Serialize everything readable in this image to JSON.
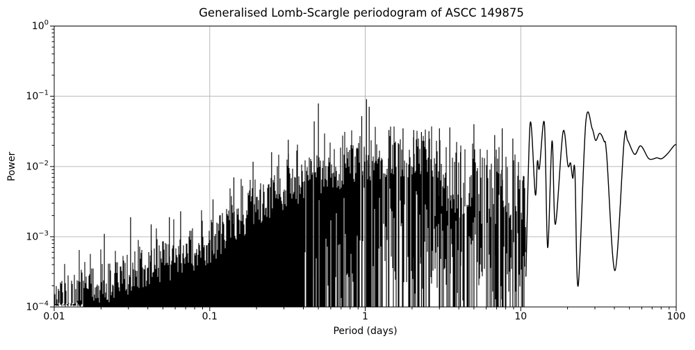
{
  "figure": {
    "title": "Generalised Lomb-Scargle periodogram of ASCC 149875",
    "background": "#ffffff"
  },
  "chart_data": {
    "type": "line",
    "title": "Generalised Lomb-Scargle periodogram of ASCC 149875",
    "xlabel": "Period (days)",
    "ylabel": "Power",
    "x_scale": "log",
    "y_scale": "log",
    "xlim": [
      0.01,
      100
    ],
    "ylim": [
      0.0001,
      1
    ],
    "x_ticks": [
      0.01,
      0.1,
      1,
      10,
      100
    ],
    "x_tick_labels": [
      "0.01",
      "0.1",
      "1",
      "10",
      "100"
    ],
    "y_tick_base": "10",
    "y_tick_exponents": [
      "0",
      "−1",
      "−2",
      "−3",
      "−4"
    ],
    "y_tick_exponent_values": [
      0,
      -1,
      -2,
      -3,
      -4
    ],
    "grid": true,
    "legend": false,
    "colors": {
      "line": "#000000",
      "grid": "#b0b0b0",
      "spine": "#000000",
      "text": "#000000",
      "background": "#ffffff"
    },
    "description": "Generalised Lomb-Scargle periodogram: dense noisy spike forest rising from ~2e-4 at P=0.01 d to ~2e-2 near P=1-2 d, strongest peaks ~0.08 at P=0.5 d and ~0.09 at P=1 d, then a smooth curve from P~11-100 d around 1e-2 to 4e-2 with deep notches near P=15, 24 and 40 d.",
    "noise_floor_min": 0.0001,
    "noise_envelope": [
      [
        0.01,
        0.00021
      ],
      [
        0.02,
        0.00033
      ],
      [
        0.04,
        0.00055
      ],
      [
        0.07,
        0.0009
      ],
      [
        0.1,
        0.0013
      ],
      [
        0.15,
        0.0026
      ],
      [
        0.2,
        0.0045
      ],
      [
        0.3,
        0.0075
      ],
      [
        0.5,
        0.012
      ],
      [
        0.8,
        0.016
      ],
      [
        1.2,
        0.02
      ],
      [
        2.0,
        0.022
      ],
      [
        3.5,
        0.018
      ],
      [
        6.0,
        0.017
      ],
      [
        10.8,
        0.012
      ]
    ],
    "major_peaks": [
      [
        0.021,
        0.0011
      ],
      [
        0.031,
        0.0019
      ],
      [
        0.042,
        0.0015
      ],
      [
        0.055,
        0.0019
      ],
      [
        0.065,
        0.0023
      ],
      [
        0.105,
        0.0034
      ],
      [
        0.143,
        0.007
      ],
      [
        0.19,
        0.0117
      ],
      [
        0.25,
        0.016
      ],
      [
        0.32,
        0.024
      ],
      [
        0.47,
        0.044
      ],
      [
        0.5,
        0.079
      ],
      [
        0.95,
        0.052
      ],
      [
        1.02,
        0.091
      ],
      [
        1.06,
        0.071
      ],
      [
        1.42,
        0.033
      ],
      [
        1.75,
        0.035
      ],
      [
        2.05,
        0.033
      ],
      [
        2.3,
        0.031
      ],
      [
        2.57,
        0.032
      ],
      [
        3.0,
        0.035
      ],
      [
        3.5,
        0.036
      ],
      [
        4.1,
        0.016
      ],
      [
        5.0,
        0.04
      ],
      [
        6.8,
        0.028
      ],
      [
        7.6,
        0.035
      ],
      [
        8.9,
        0.025
      ]
    ],
    "smooth_tail": [
      [
        10.8,
        0.00027
      ],
      [
        11.5,
        0.041
      ],
      [
        12.4,
        0.004
      ],
      [
        12.8,
        0.0119
      ],
      [
        13.2,
        0.0095
      ],
      [
        14.2,
        0.041
      ],
      [
        14.9,
        0.0007
      ],
      [
        15.9,
        0.0231
      ],
      [
        16.7,
        0.0015
      ],
      [
        18.7,
        0.031
      ],
      [
        20.1,
        0.0104
      ],
      [
        20.9,
        0.0112
      ],
      [
        21.6,
        0.0068
      ],
      [
        22.3,
        0.0085
      ],
      [
        23.4,
        0.0002
      ],
      [
        26.2,
        0.042
      ],
      [
        28.8,
        0.0348
      ],
      [
        30.3,
        0.0235
      ],
      [
        32.2,
        0.0297
      ],
      [
        34.3,
        0.023
      ],
      [
        35.7,
        0.0146
      ],
      [
        40.4,
        0.00033
      ],
      [
        46.2,
        0.023
      ],
      [
        48.7,
        0.0235
      ],
      [
        54.0,
        0.0149
      ],
      [
        59.1,
        0.0197
      ],
      [
        66.2,
        0.0131
      ],
      [
        71.1,
        0.0128
      ],
      [
        75.0,
        0.0133
      ],
      [
        80.5,
        0.0129
      ],
      [
        87.5,
        0.015
      ],
      [
        97.0,
        0.0199
      ],
      [
        100.0,
        0.0203
      ]
    ],
    "structure": {
      "solid_comb_until_period": 0.41,
      "gapped_comb_until_period": 1.42,
      "sparse_comb_until_period": 10.8,
      "smooth_curve_from_period": 10.8
    }
  }
}
